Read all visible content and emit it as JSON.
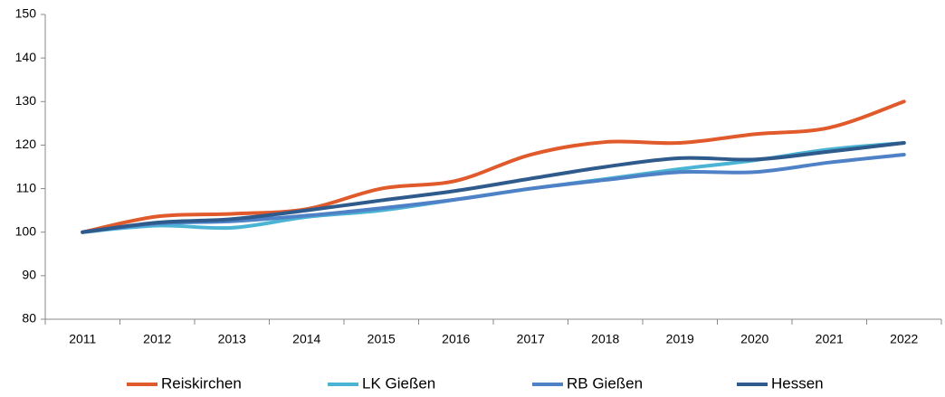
{
  "chart_data": {
    "type": "line",
    "categories": [
      "2011",
      "2012",
      "2013",
      "2014",
      "2015",
      "2016",
      "2017",
      "2018",
      "2019",
      "2020",
      "2021",
      "2022"
    ],
    "series": [
      {
        "name": "Reiskirchen",
        "color": "#e05a2b",
        "values": [
          100,
          103.6,
          104.2,
          105.3,
          110,
          111.8,
          117.8,
          120.7,
          120.5,
          122.5,
          124,
          130
        ]
      },
      {
        "name": "LK Gießen",
        "color": "#4bb3d4",
        "values": [
          100,
          101.5,
          101,
          103.5,
          105,
          107.5,
          110,
          112.2,
          114.5,
          116.5,
          119,
          120.5
        ]
      },
      {
        "name": "RB Gießen",
        "color": "#4f81c7",
        "values": [
          100,
          102,
          102.5,
          103.8,
          105.5,
          107.5,
          110,
          112,
          113.8,
          113.8,
          116,
          117.8
        ]
      },
      {
        "name": "Hessen",
        "color": "#2e5a8c",
        "values": [
          100,
          102.2,
          103,
          105,
          107.3,
          109.5,
          112.3,
          115,
          117,
          116.7,
          118.5,
          120.5
        ]
      }
    ],
    "ylim": [
      80,
      150
    ],
    "yticks": [
      80,
      90,
      100,
      110,
      120,
      130,
      140,
      150
    ],
    "grid": false,
    "legend": "bottom"
  }
}
